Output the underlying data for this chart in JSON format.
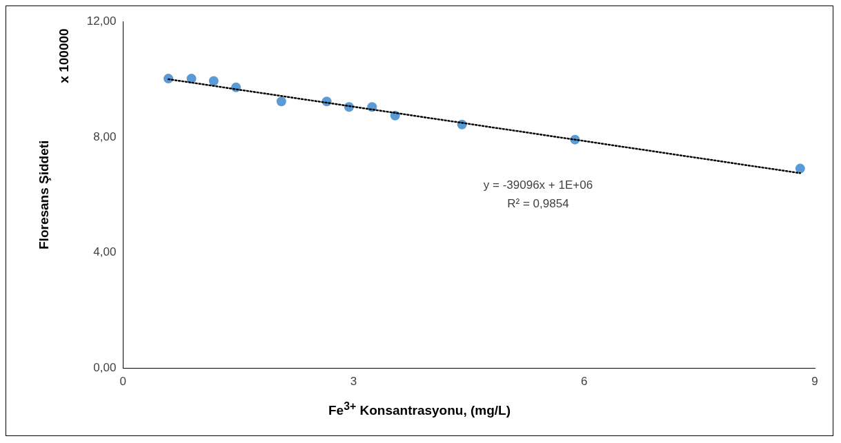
{
  "chart_data": {
    "type": "scatter",
    "xlabel": "Fe$^{3+}$ Konsantrasyonu, (mg/L)",
    "ylabel": "Floresans Şiddeti",
    "xlim": [
      0,
      9
    ],
    "xticks": [
      0,
      3,
      6,
      9
    ],
    "ylim": [
      0,
      12
    ],
    "yticks": [
      {
        "value": 0,
        "label": "0,00"
      },
      {
        "value": 4,
        "label": "4,00"
      },
      {
        "value": 8,
        "label": "8,00"
      },
      {
        "value": 12,
        "label": "12,00"
      }
    ],
    "grid": false,
    "legend": false,
    "series": [
      {
        "type": "scatter",
        "color": "#5b9bd5",
        "marker": "circle",
        "x": [
          0.59,
          0.89,
          1.18,
          1.47,
          2.06,
          2.65,
          2.94,
          3.24,
          3.54,
          4.41,
          5.88,
          8.81
        ],
        "values": [
          10.02,
          10.02,
          9.94,
          9.72,
          9.23,
          9.23,
          9.04,
          9.04,
          8.74,
          8.43,
          7.91,
          6.91
        ]
      },
      {
        "type": "line",
        "color": "#000000",
        "marker": "none",
        "line_style": "dotted",
        "x": [
          0.59,
          8.81
        ],
        "values": [
          10.0,
          6.75
        ]
      }
    ],
    "annotations": [
      "x 100000",
      "y = -39096x + 1E+06",
      "R² = 0,9854"
    ]
  }
}
